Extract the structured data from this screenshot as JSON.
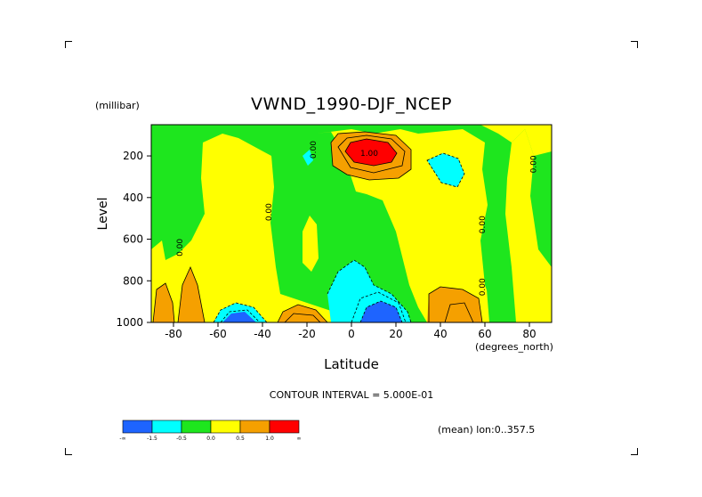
{
  "chart_data": {
    "type": "heatmap",
    "title": "VWND_1990-DJF_NCEP",
    "xlabel": "Latitude",
    "x_unit": "(degrees_north)",
    "ylabel": "Level",
    "y_unit": "(millibar)",
    "xlim": [
      -90,
      90
    ],
    "ylim": [
      1000,
      50
    ],
    "y_reversed": true,
    "x_ticks": [
      "-80",
      "-60",
      "-40",
      "-20",
      "0",
      "20",
      "40",
      "60",
      "80"
    ],
    "x_tick_values": [
      -80,
      -60,
      -40,
      -20,
      0,
      20,
      40,
      60,
      80
    ],
    "y_ticks": [
      "200",
      "400",
      "600",
      "800",
      "1000"
    ],
    "y_tick_values": [
      200,
      400,
      600,
      800,
      1000
    ],
    "contour_interval": "CONTOUR INTERVAL = 5.000E-01",
    "annotation": "(mean) lon:0..357.5",
    "contour_labels": [
      {
        "text": "0.00",
        "lat": -76,
        "lev": 640
      },
      {
        "text": "0.00",
        "lat": -36,
        "lev": 470
      },
      {
        "text": "0.00",
        "lat": -16,
        "lev": 170
      },
      {
        "text": "1.00",
        "lat": 8,
        "lev": 200
      },
      {
        "text": "0.00",
        "lat": 60,
        "lev": 530
      },
      {
        "text": "0.00",
        "lat": 60,
        "lev": 830
      },
      {
        "text": "0.00",
        "lat": 83,
        "lev": 240
      }
    ],
    "colorbar": {
      "levels": [
        "-∞",
        "-1.5",
        "-0.5",
        "0.0",
        "0.5",
        "1.0",
        "∞"
      ],
      "colors": [
        "#1e64ff",
        "#00ffff",
        "#1ee61e",
        "#ffff00",
        "#f5a000",
        "#ff0000"
      ]
    },
    "regions": [
      {
        "name": "negative",
        "color": "#1ee61e",
        "lat_range": [
          -90,
          90
        ],
        "lev_range": [
          50,
          1000
        ]
      },
      {
        "name": "positive-weak",
        "color": "#ffff00",
        "lat_range": [
          -75,
          -52
        ],
        "lev_range": [
          150,
          650
        ]
      },
      {
        "name": "max",
        "color": "#ff0000",
        "lat_range": [
          2,
          18
        ],
        "lev_range": [
          130,
          190
        ]
      },
      {
        "name": "min",
        "color": "#1e64ff",
        "lat_range": [
          0,
          22
        ],
        "lev_range": [
          900,
          1000
        ]
      }
    ]
  }
}
